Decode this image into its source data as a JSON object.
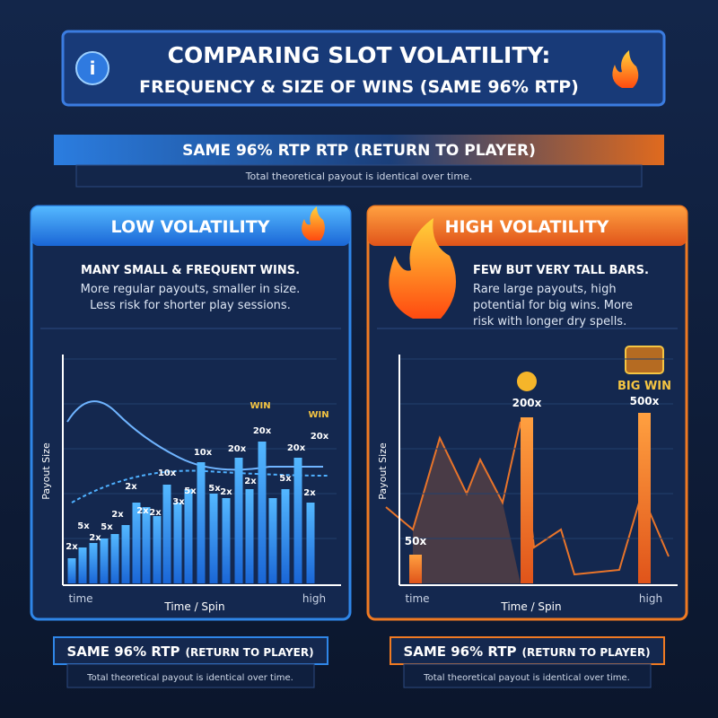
{
  "header": {
    "title_line1": "COMPARING SLOT VOLATILITY:",
    "title_line2": "FREQUENCY & SIZE OF WINS (SAME 96% RTP)"
  },
  "banner": {
    "title": "SAME 96% RTP RTP (RETURN TO PLAYER)",
    "subtitle": "Total theoretical payout is identical over time."
  },
  "panels": [
    {
      "title": "LOW VOLATILITY",
      "headline": "MANY SMALL & FREQUENT WINS.",
      "body_lines": [
        "More regular payouts, smaller in size.",
        "Less risk for shorter play sessions."
      ],
      "y_label": "Payout Size",
      "x_label": "Time / Spin",
      "x_start": "time",
      "x_end": "high",
      "bar_labels": [
        "2x",
        "5x",
        "2x",
        "5x",
        "2x",
        "2x",
        "2x",
        "2x",
        "10x",
        "3x",
        "5x",
        "10x",
        "5x",
        "2x",
        "20x",
        "2x",
        "20x",
        "5x",
        "20x",
        "2x",
        "20x"
      ],
      "badges": [
        "WIN",
        "WIN"
      ],
      "footer_title": "SAME 96% RTP",
      "footer_title_small": "(RETURN TO PLAYER)",
      "footer_note": "Total theoretical payout is identical over time."
    },
    {
      "title": "HIGH VOLATILITY",
      "headline": "FEW BUT VERY TALL BARS.",
      "body_lines": [
        "Rare large payouts, high",
        "potential for big wins. More",
        "risk with longer dry spells."
      ],
      "y_label": "Payout Size",
      "x_label": "Time / Spin",
      "x_start": "time",
      "x_end": "high",
      "bar_labels": [
        "50x",
        "200x",
        "500x"
      ],
      "badges": [
        "BIG WIN"
      ],
      "footer_title": "SAME 96% RTP",
      "footer_title_small": "(RETURN TO PLAYER)",
      "footer_note": "Total theoretical payout is identical over time."
    }
  ]
}
